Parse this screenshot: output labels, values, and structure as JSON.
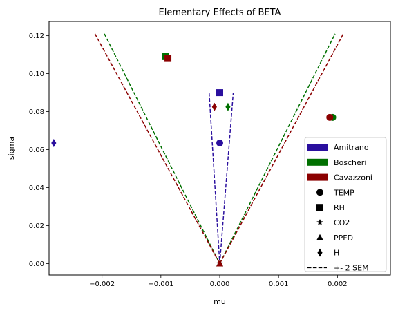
{
  "chart_data": {
    "type": "scatter",
    "title": "Elementary Effects of BETA",
    "xlabel": "mu",
    "ylabel": "sigma",
    "xlim": [
      -0.0029,
      0.0029
    ],
    "ylim": [
      -0.006,
      0.1275
    ],
    "xticks": [
      -0.002,
      -0.001,
      0.0,
      0.001,
      0.002
    ],
    "xtick_labels": [
      "−0.002",
      "−0.001",
      "0.000",
      "0.001",
      "0.002"
    ],
    "yticks": [
      0.0,
      0.02,
      0.04,
      0.06,
      0.08,
      0.1,
      0.12
    ],
    "ytick_labels": [
      "0.00",
      "0.02",
      "0.04",
      "0.06",
      "0.08",
      "0.10",
      "0.12"
    ],
    "grid": false,
    "legend_position": "lower-right",
    "series": [
      {
        "name": "Amitrano",
        "color": "#2a0f9e",
        "points": [
          {
            "marker": "circle",
            "x": 0.0,
            "y": 0.0635
          },
          {
            "marker": "square",
            "x": 0.0,
            "y": 0.09
          },
          {
            "marker": "star",
            "x": 0.0,
            "y": 0.0
          },
          {
            "marker": "triangle",
            "x": 0.0,
            "y": 0.0
          },
          {
            "marker": "diamond",
            "x": -0.00282,
            "y": 0.0635
          }
        ],
        "sem_line": {
          "x_left": -0.00018,
          "x_right": 0.00023,
          "y_top": 0.09
        }
      },
      {
        "name": "Boscheri",
        "color": "#007000",
        "points": [
          {
            "marker": "circle",
            "x": 0.00192,
            "y": 0.077
          },
          {
            "marker": "square",
            "x": -0.00092,
            "y": 0.109
          },
          {
            "marker": "star",
            "x": 0.0,
            "y": 0.0
          },
          {
            "marker": "triangle",
            "x": 0.0,
            "y": 0.0
          },
          {
            "marker": "diamond",
            "x": 0.00014,
            "y": 0.0825
          }
        ],
        "sem_line": {
          "x_left": -0.00196,
          "x_right": 0.00196,
          "y_top": 0.121
        }
      },
      {
        "name": "Cavazzoni",
        "color": "#8b0000",
        "points": [
          {
            "marker": "circle",
            "x": 0.00187,
            "y": 0.077
          },
          {
            "marker": "square",
            "x": -0.00088,
            "y": 0.108
          },
          {
            "marker": "star",
            "x": 0.0,
            "y": 0.0
          },
          {
            "marker": "triangle",
            "x": 0.0,
            "y": 0.0
          },
          {
            "marker": "diamond",
            "x": -9e-05,
            "y": 0.0825
          }
        ],
        "sem_line": {
          "x_left": -0.00212,
          "x_right": 0.0021,
          "y_top": 0.121
        }
      }
    ],
    "legend": {
      "patches": [
        {
          "label": "Amitrano",
          "color": "#2a0f9e"
        },
        {
          "label": "Boscheri",
          "color": "#007000"
        },
        {
          "label": "Cavazzoni",
          "color": "#8b0000"
        }
      ],
      "markers": [
        {
          "label": "TEMP",
          "marker": "circle"
        },
        {
          "label": "RH",
          "marker": "square"
        },
        {
          "label": "CO2",
          "marker": "star"
        },
        {
          "label": "PPFD",
          "marker": "triangle"
        },
        {
          "label": "H",
          "marker": "diamond"
        }
      ],
      "line": {
        "label": "+- 2 SEM",
        "style": "dashed"
      }
    }
  }
}
